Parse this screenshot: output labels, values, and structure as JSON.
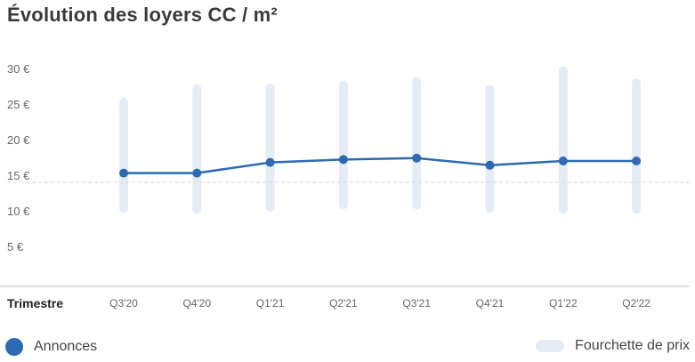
{
  "title": "Évolution des loyers CC / m²",
  "legend": {
    "line_label": "Annonces",
    "range_label": "Fourchette de prix"
  },
  "colors": {
    "line": "#2e6ab1",
    "range": "#e6ecf5",
    "median_dash": "#d5d9e0"
  },
  "chart_data": {
    "type": "line",
    "title": "Évolution des loyers CC / m²",
    "xlabel": "Trimestre",
    "ylabel": "",
    "categories": [
      "Q3'20",
      "Q4'20",
      "Q1'21",
      "Q2'21",
      "Q3'21",
      "Q4'21",
      "Q1'22",
      "Q2'22"
    ],
    "yticks": [
      "30 €",
      "25 €",
      "20 €",
      "15 €",
      "10 €",
      "5 €"
    ],
    "ytick_values": [
      30,
      25,
      20,
      15,
      10,
      5
    ],
    "ylim": [
      0,
      30
    ],
    "series": [
      {
        "name": "Annonces",
        "values": [
          15.3,
          15.3,
          16.8,
          17.2,
          17.4,
          16.4,
          17.0,
          17.0
        ]
      }
    ],
    "ranges": {
      "name": "Fourchette de prix",
      "low": [
        9.7,
        9.6,
        9.9,
        10.2,
        10.2,
        9.7,
        9.6,
        9.6
      ],
      "high": [
        25.9,
        27.8,
        27.9,
        28.3,
        28.8,
        27.7,
        30.3,
        28.6
      ]
    },
    "reference_line": 14.0,
    "grid": false,
    "legend_position": "bottom"
  }
}
